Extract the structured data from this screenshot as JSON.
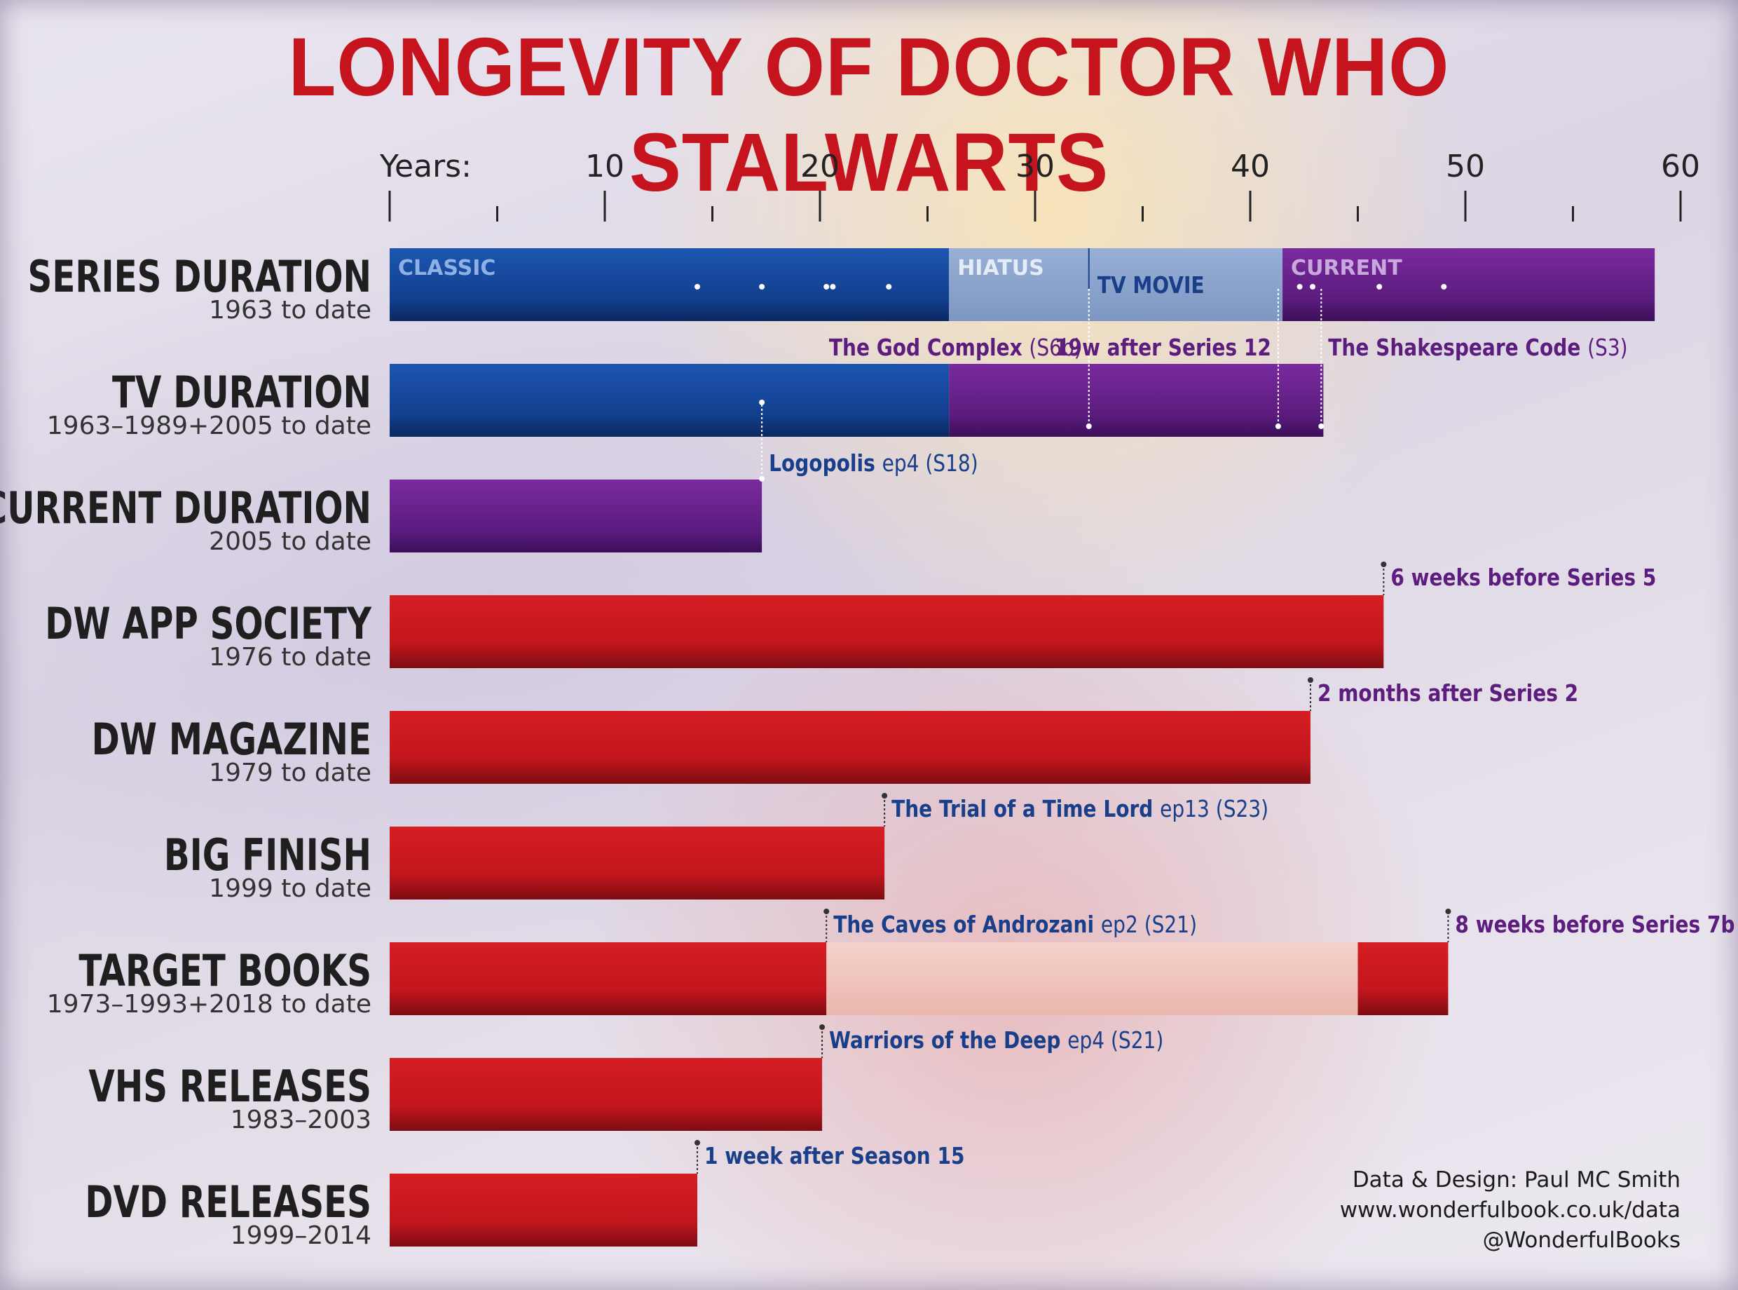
{
  "title": "LONGEVITY OF DOCTOR WHO STALWARTS",
  "credits": {
    "line1": "Data & Design: Paul MC Smith",
    "line2": "www.wonderfulbook.co.uk/data",
    "line3": "@WonderfulBooks"
  },
  "colors": {
    "title": "#c5141d",
    "classic_blue": "#123f8e",
    "current_purple": "#5b1c7e",
    "hiatus": "#8da5cc",
    "red_bar": "#c3161d",
    "target_gap": "#f0c8c0",
    "annotation_blue": "#1a3f8a",
    "annotation_purple": "#5c1d7e"
  },
  "chart_data": {
    "type": "bar",
    "orientation": "horizontal",
    "axis": {
      "title": "Years:",
      "ticks": [
        10,
        20,
        30,
        40,
        50,
        60
      ],
      "xlim": [
        0,
        60
      ],
      "minor_ticks": [
        5,
        15,
        25,
        35,
        45,
        55
      ]
    },
    "rows": [
      {
        "name": "SERIES DURATION",
        "subtitle": "1963 to date",
        "segments": [
          {
            "label": "CLASSIC",
            "start": 0,
            "end": 26,
            "kind": "classic"
          },
          {
            "label": "HIATUS",
            "start": 26,
            "end": 41.5,
            "kind": "hiatus"
          },
          {
            "label": "CURRENT",
            "start": 41.5,
            "end": 58.8,
            "kind": "current"
          }
        ],
        "inner_label": {
          "text": "TV MOVIE",
          "value": 32.5
        },
        "dots": [
          14.3,
          17.3,
          20.3,
          20.6,
          23.2,
          42.3,
          42.9,
          46,
          49
        ]
      },
      {
        "name": "TV DURATION",
        "subtitle": "1963–1989+2005 to date",
        "segments": [
          {
            "start": 0,
            "end": 26,
            "kind": "classic"
          },
          {
            "start": 26,
            "end": 43.4,
            "kind": "current"
          }
        ],
        "dots": [
          17.3
        ]
      },
      {
        "name": "CURRENT DURATION",
        "subtitle": "2005 to date",
        "segments": [
          {
            "start": 0,
            "end": 17.3,
            "kind": "current"
          }
        ]
      },
      {
        "name": "DW APP SOCIETY",
        "subtitle": "1976 to date",
        "segments": [
          {
            "start": 0,
            "end": 46.2,
            "kind": "red"
          }
        ]
      },
      {
        "name": "DW MAGAZINE",
        "subtitle": "1979 to date",
        "segments": [
          {
            "start": 0,
            "end": 42.8,
            "kind": "red"
          }
        ]
      },
      {
        "name": "BIG FINISH",
        "subtitle": "1999 to date",
        "segments": [
          {
            "start": 0,
            "end": 23,
            "kind": "red"
          }
        ]
      },
      {
        "name": "TARGET BOOKS",
        "subtitle": "1973–1993+2018 to date",
        "segments": [
          {
            "start": 0,
            "end": 20.3,
            "kind": "red"
          },
          {
            "start": 20.3,
            "end": 45,
            "kind": "gap"
          },
          {
            "start": 45,
            "end": 49.2,
            "kind": "red"
          }
        ]
      },
      {
        "name": "VHS RELEASES",
        "subtitle": "1983–2003",
        "segments": [
          {
            "start": 0,
            "end": 20.1,
            "kind": "red"
          }
        ]
      },
      {
        "name": "DVD RELEASES",
        "subtitle": "1999–2014",
        "segments": [
          {
            "start": 0,
            "end": 14.3,
            "kind": "red"
          }
        ]
      }
    ],
    "annotations": [
      {
        "row": 0,
        "value": 32.5,
        "parts": [
          {
            "t": "The God Complex ",
            "style": "title"
          },
          {
            "t": "(S6b)",
            "style": "light"
          }
        ],
        "color": "purple",
        "align": "end",
        "pos": "below"
      },
      {
        "row": 0,
        "value": 41.3,
        "parts": [
          {
            "t": "19w after Series 12",
            "style": "title"
          }
        ],
        "color": "purple",
        "align": "end",
        "pos": "below"
      },
      {
        "row": 0,
        "value": 43.3,
        "parts": [
          {
            "t": "The Shakespeare Code ",
            "style": "title"
          },
          {
            "t": "(S3)",
            "style": "light"
          }
        ],
        "color": "purple",
        "align": "start",
        "pos": "below"
      },
      {
        "row": 1,
        "value": 17.3,
        "parts": [
          {
            "t": "Logopolis ",
            "style": "title"
          },
          {
            "t": "ep4 (S18)",
            "style": "light"
          }
        ],
        "color": "blue",
        "align": "start",
        "pos": "below"
      },
      {
        "row": 3,
        "value": 46.2,
        "parts": [
          {
            "t": "6 weeks before Series 5",
            "style": "title"
          }
        ],
        "color": "purple",
        "align": "start",
        "pos": "above"
      },
      {
        "row": 4,
        "value": 42.8,
        "parts": [
          {
            "t": "2 months after Series 2",
            "style": "title"
          }
        ],
        "color": "purple",
        "align": "start",
        "pos": "above"
      },
      {
        "row": 5,
        "value": 23,
        "parts": [
          {
            "t": "The Trial of a Time Lord ",
            "style": "title"
          },
          {
            "t": "ep13 (S23)",
            "style": "light"
          }
        ],
        "color": "blue",
        "align": "start",
        "pos": "above"
      },
      {
        "row": 6,
        "value": 20.3,
        "parts": [
          {
            "t": "The Caves of Androzani ",
            "style": "title"
          },
          {
            "t": "ep2 (S21)",
            "style": "light"
          }
        ],
        "color": "blue",
        "align": "start",
        "pos": "above"
      },
      {
        "row": 6,
        "value": 49.2,
        "parts": [
          {
            "t": "8 weeks before Series 7b",
            "style": "title"
          }
        ],
        "color": "purple",
        "align": "start",
        "pos": "above"
      },
      {
        "row": 7,
        "value": 20.1,
        "parts": [
          {
            "t": "Warriors of the Deep ",
            "style": "title"
          },
          {
            "t": "ep4 (S21)",
            "style": "light"
          }
        ],
        "color": "blue",
        "align": "start",
        "pos": "above"
      },
      {
        "row": 8,
        "value": 14.3,
        "parts": [
          {
            "t": "1 week after Season 15",
            "style": "title"
          }
        ],
        "color": "blue",
        "align": "start",
        "pos": "above"
      }
    ]
  }
}
